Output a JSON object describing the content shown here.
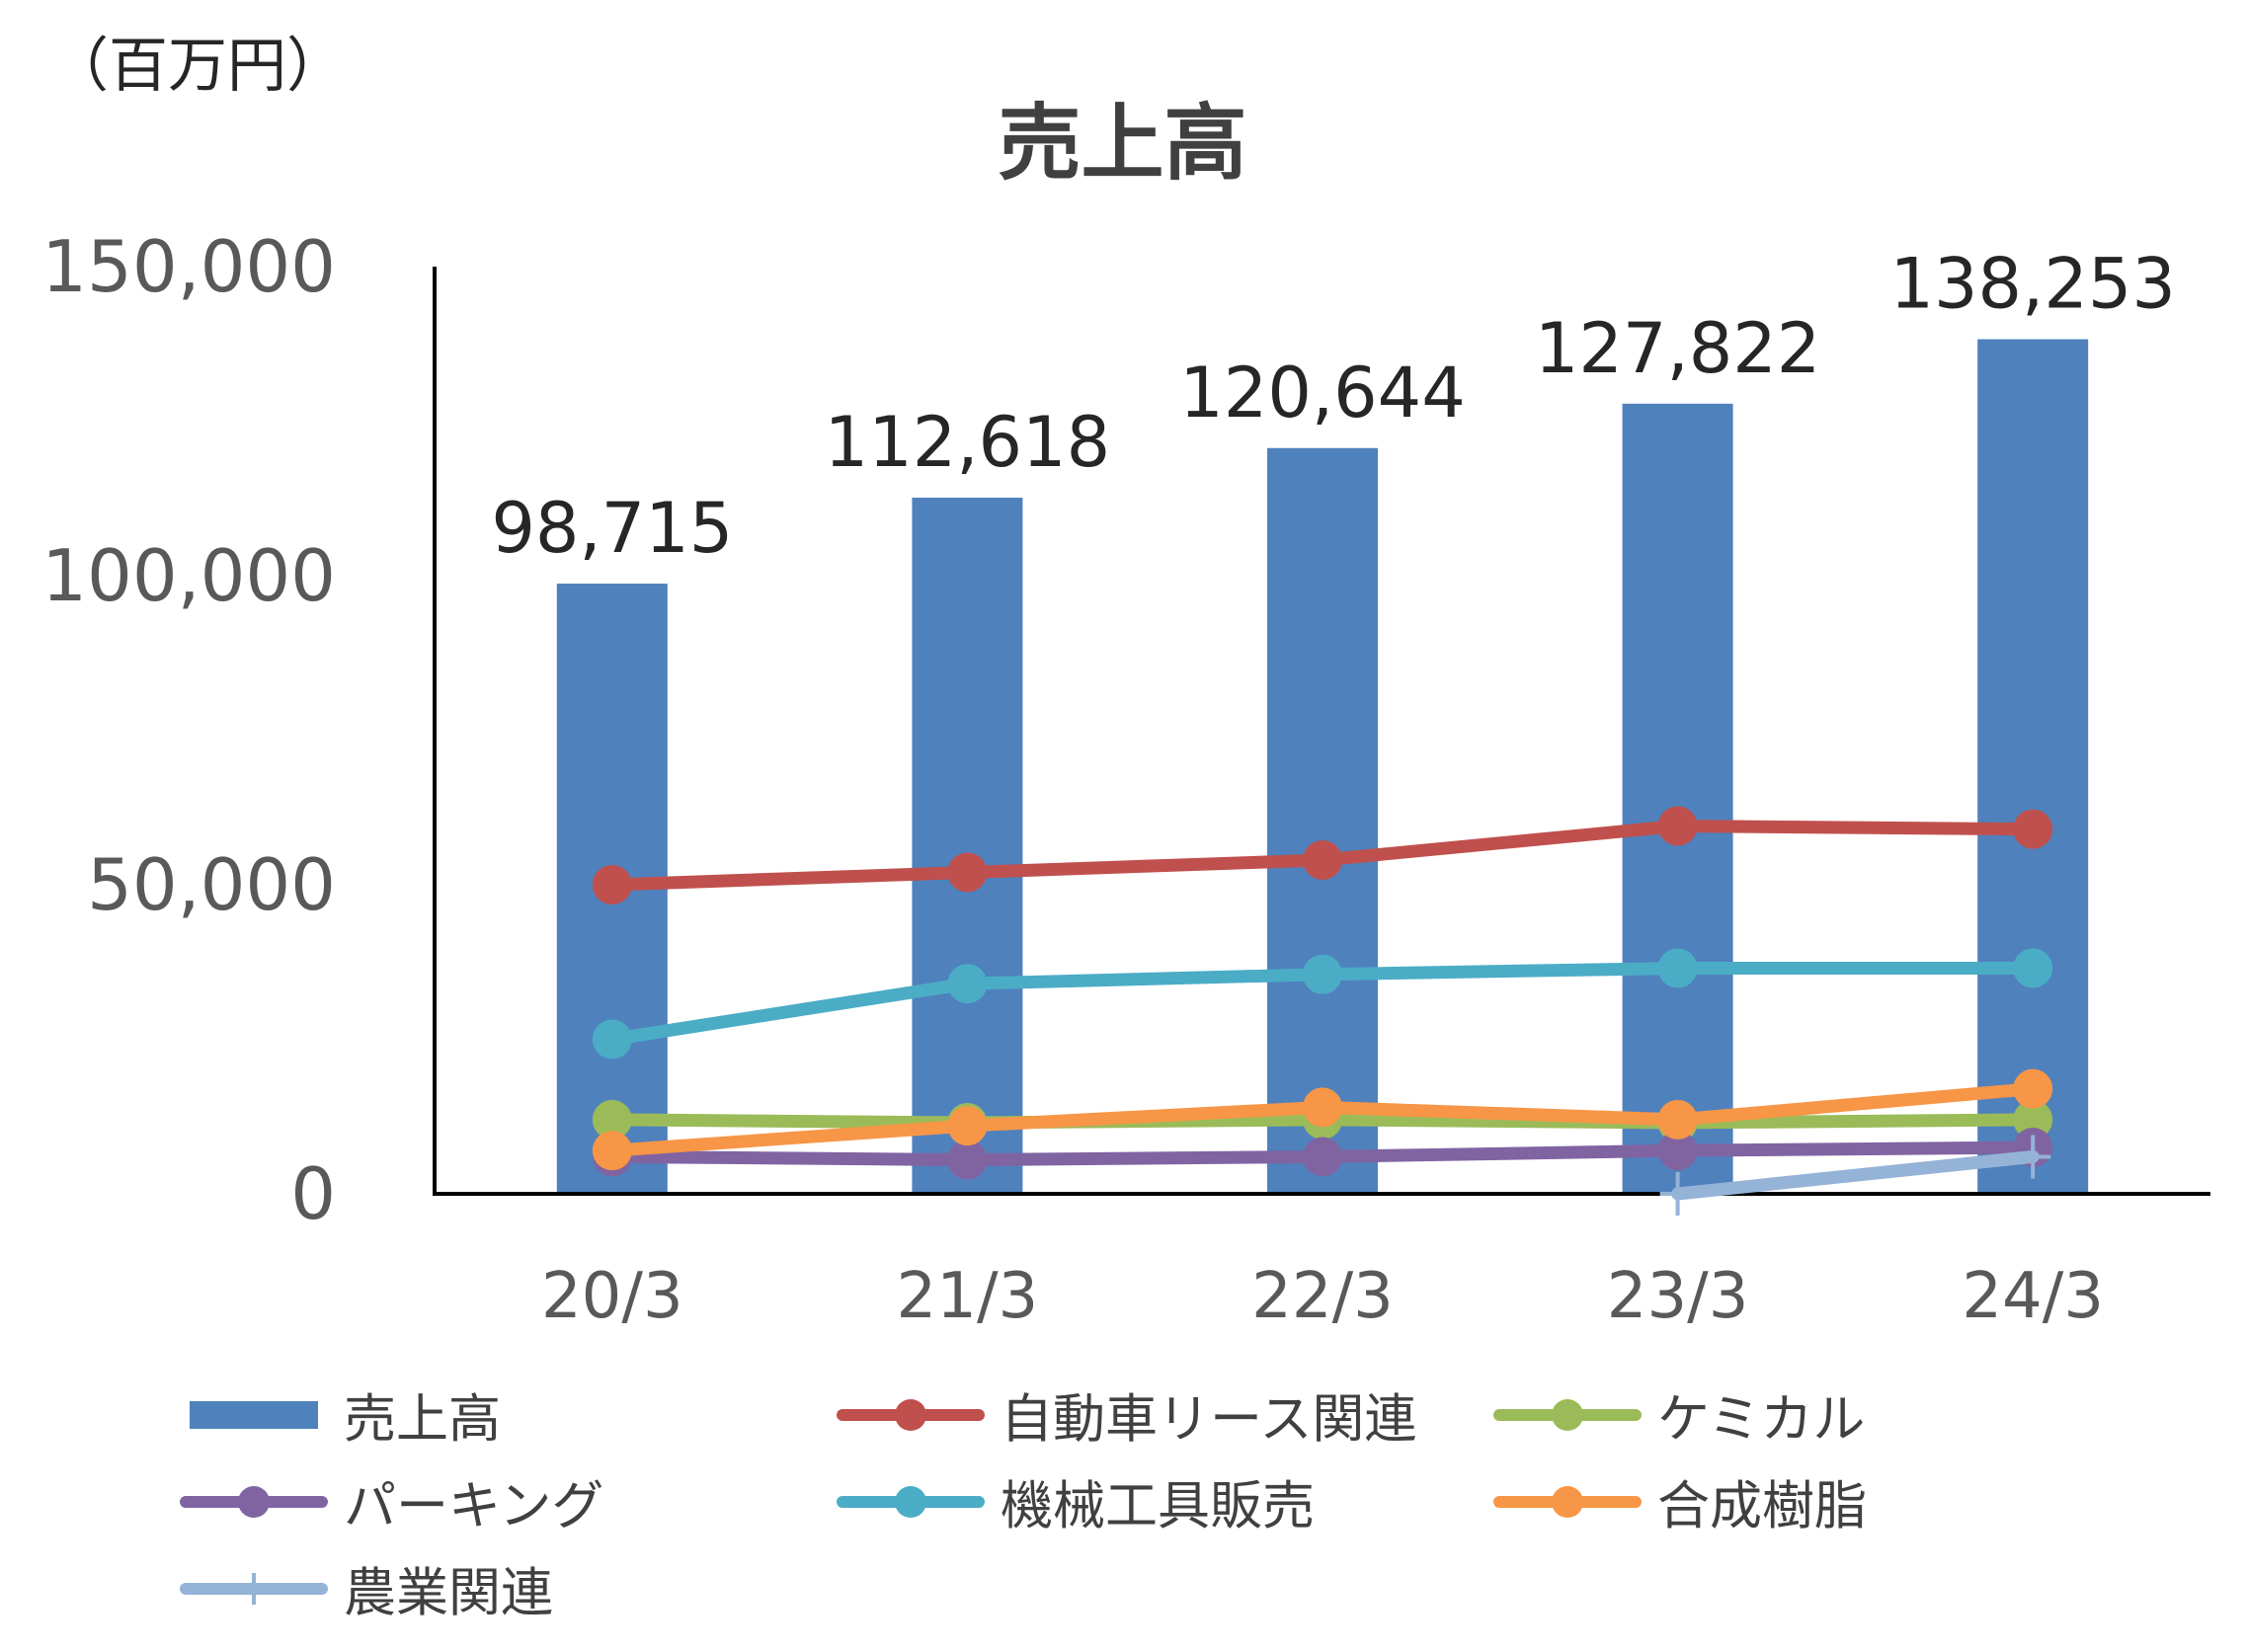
{
  "unit_label": "（百万円）",
  "chart_data": {
    "type": "bar",
    "title": "売上高",
    "categories": [
      "20/3",
      "21/3",
      "22/3",
      "23/3",
      "24/3"
    ],
    "ylim": [
      0,
      150000
    ],
    "yticks": [
      0,
      50000,
      100000,
      150000
    ],
    "ytick_labels": [
      "0",
      "50,000",
      "100,000",
      "150,000"
    ],
    "grid": false,
    "legend_position": "bottom",
    "series": [
      {
        "name": "売上高",
        "kind": "bar",
        "color": "#4F81BD",
        "values": [
          98715,
          112618,
          120644,
          127822,
          138253
        ],
        "data_labels": [
          "98,715",
          "112,618",
          "120,644",
          "127,822",
          "138,253"
        ]
      },
      {
        "name": "自動車リース関連",
        "kind": "line",
        "marker": "circle",
        "color": "#C0504D",
        "values": [
          50000,
          52000,
          54000,
          59500,
          59000
        ]
      },
      {
        "name": "ケミカル",
        "kind": "line",
        "marker": "circle",
        "color": "#9BBB59",
        "values": [
          12000,
          11500,
          12000,
          11500,
          12000
        ]
      },
      {
        "name": "パーキング",
        "kind": "line",
        "marker": "circle",
        "color": "#8064A2",
        "values": [
          6000,
          5500,
          6000,
          7000,
          7500
        ]
      },
      {
        "name": "機械工具販売",
        "kind": "line",
        "marker": "circle",
        "color": "#4BACC6",
        "values": [
          25000,
          34000,
          35500,
          36500,
          36500
        ]
      },
      {
        "name": "合成樹脂",
        "kind": "line",
        "marker": "circle",
        "color": "#F79646",
        "values": [
          7000,
          11000,
          14000,
          12000,
          17000
        ]
      },
      {
        "name": "農業関連",
        "kind": "line",
        "marker": "plus",
        "color": "#95B3D7",
        "values": [
          null,
          null,
          null,
          0,
          6000
        ]
      }
    ]
  }
}
